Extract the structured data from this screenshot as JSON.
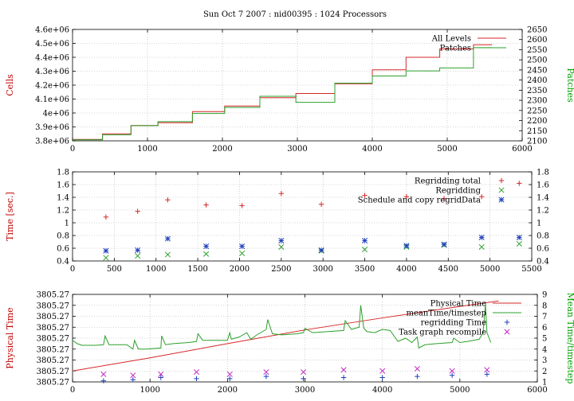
{
  "title": "Sun Oct 7 2007 : nid00395 : 1024 Processors",
  "colors": {
    "red": "#d62728",
    "green": "#2ca02c",
    "blue": "#1f3fbf",
    "magenta": "#c020c0"
  },
  "chart_data": [
    {
      "type": "line",
      "ylabel": "Cells",
      "y2label": "Patches",
      "xlim": [
        0,
        6000
      ],
      "ylim": [
        3800000,
        4600000
      ],
      "y2lim": [
        2100,
        2650
      ],
      "xticks": [
        0,
        1000,
        2000,
        3000,
        4000,
        5000,
        6000
      ],
      "yticks": [
        3800000,
        3900000,
        4000000,
        4100000,
        4200000,
        4300000,
        4400000,
        4500000,
        4600000
      ],
      "ytick_labels": [
        "3.8e+06",
        "3.9e+06",
        "4e+06",
        "4.1e+06",
        "4.2e+06",
        "4.3e+06",
        "4.4e+06",
        "4.5e+06",
        "4.6e+06"
      ],
      "y2ticks": [
        2100,
        2150,
        2200,
        2250,
        2300,
        2350,
        2400,
        2450,
        2500,
        2550,
        2600,
        2650
      ],
      "legend_position": "top-right",
      "series": [
        {
          "name": "All Levels",
          "axis": "y",
          "color": "#d62728",
          "step": true,
          "x": [
            0,
            400,
            780,
            1140,
            1600,
            2030,
            2500,
            2980,
            3500,
            4000,
            4450,
            4900,
            5350
          ],
          "y": [
            3810000,
            3850000,
            3910000,
            3930000,
            4010000,
            4050000,
            4110000,
            4140000,
            4210000,
            4310000,
            4400000,
            4460000,
            4490000
          ]
        },
        {
          "name": "Patches",
          "axis": "y2",
          "color": "#2ca02c",
          "step": true,
          "x": [
            0,
            400,
            780,
            1140,
            1600,
            2030,
            2500,
            2980,
            3500,
            4000,
            4450,
            4900,
            5350
          ],
          "y": [
            2105,
            2130,
            2175,
            2195,
            2235,
            2265,
            2320,
            2290,
            2385,
            2420,
            2445,
            2460,
            2560
          ]
        }
      ]
    },
    {
      "type": "scatter",
      "ylabel": "Time [sec.]",
      "xlim": [
        0,
        5500
      ],
      "ylim": [
        0.4,
        1.8
      ],
      "xticks": [
        0,
        500,
        1000,
        1500,
        2000,
        2500,
        3000,
        3500,
        4000,
        4500,
        5000,
        5500
      ],
      "yticks": [
        0.4,
        0.6,
        0.8,
        1,
        1.2,
        1.4,
        1.6,
        1.8
      ],
      "ytick_labels": [
        "0.4",
        "0.6",
        "0.8",
        "1",
        "1.2",
        "1.4",
        "1.6",
        "1.8"
      ],
      "legend_position": "top-right",
      "series": [
        {
          "name": "Regridding total",
          "marker": "plus",
          "color": "#d62728",
          "x": [
            400,
            780,
            1140,
            1600,
            2030,
            2500,
            2980,
            3500,
            4000,
            4450,
            4900,
            5350
          ],
          "y": [
            1.09,
            1.18,
            1.36,
            1.28,
            1.27,
            1.46,
            1.29,
            1.43,
            1.41,
            1.38,
            1.41,
            1.62
          ]
        },
        {
          "name": "Regridding",
          "marker": "cross",
          "color": "#2ca02c",
          "x": [
            400,
            780,
            1140,
            1600,
            2030,
            2500,
            2980,
            3500,
            4000,
            4450,
            4900,
            5350
          ],
          "y": [
            0.45,
            0.48,
            0.5,
            0.51,
            0.52,
            0.62,
            0.56,
            0.58,
            0.62,
            0.65,
            0.62,
            0.67
          ]
        },
        {
          "name": "Schedule and copy regridData",
          "marker": "star",
          "color": "#1f3fbf",
          "x": [
            400,
            780,
            1140,
            1600,
            2030,
            2500,
            2980,
            3500,
            4000,
            4450,
            4900,
            5350
          ],
          "y": [
            0.56,
            0.57,
            0.75,
            0.63,
            0.63,
            0.72,
            0.57,
            0.72,
            0.64,
            0.66,
            0.77,
            0.77
          ]
        }
      ]
    },
    {
      "type": "line",
      "ylabel": "Physical Time",
      "y2label": "Mean Time/timestep",
      "xlim": [
        0,
        6000
      ],
      "ylim": [
        0,
        8
      ],
      "y2lim": [
        1,
        9
      ],
      "xticks": [
        0,
        1000,
        2000,
        3000,
        4000,
        5000,
        6000
      ],
      "yticks": [
        0,
        1,
        2,
        3,
        4,
        5,
        6,
        7,
        8
      ],
      "ytick_labels": [
        "3805.27",
        "3805.27",
        "3805.27",
        "3805.27",
        "3805.27",
        "3805.27",
        "3805.27",
        "3805.27",
        "3805.27"
      ],
      "y2ticks": [
        1,
        2,
        3,
        4,
        5,
        6,
        7,
        8,
        9
      ],
      "legend_position": "top-right",
      "series": [
        {
          "name": "Physical Time",
          "kind": "line",
          "axis": "y",
          "color": "#d62728",
          "x": [
            0,
            1000,
            2000,
            3000,
            4000,
            5000,
            5500
          ],
          "y": [
            1.0,
            2.2,
            3.5,
            4.75,
            5.85,
            6.9,
            7.4
          ]
        },
        {
          "name": "meanTime/timestep",
          "kind": "line",
          "axis": "y2",
          "color": "#2ca02c",
          "x": [
            0,
            60,
            120,
            300,
            400,
            420,
            470,
            560,
            700,
            780,
            800,
            850,
            950,
            1140,
            1150,
            1200,
            1300,
            1500,
            1600,
            1620,
            1680,
            1800,
            2000,
            2030,
            2050,
            2150,
            2250,
            2300,
            2380,
            2500,
            2520,
            2580,
            2700,
            2900,
            2980,
            3000,
            3100,
            3300,
            3500,
            3520,
            3600,
            3700,
            3720,
            3760,
            3800,
            3900,
            4000,
            4100,
            4200,
            4300,
            4380,
            4450,
            4470,
            4550,
            4700,
            4900,
            4920,
            5000,
            5100,
            5250,
            5300,
            5330,
            5350,
            5400
          ],
          "y": [
            4.8,
            4.5,
            4.35,
            4.35,
            4.4,
            5.2,
            4.4,
            4.4,
            4.4,
            4.0,
            4.8,
            4.0,
            4.0,
            4.1,
            5.2,
            4.4,
            4.5,
            4.6,
            4.7,
            5.4,
            4.8,
            4.8,
            4.8,
            5.5,
            4.9,
            5.1,
            5.5,
            4.9,
            5.3,
            5.8,
            6.7,
            5.4,
            5.3,
            5.4,
            5.5,
            5.9,
            5.5,
            5.6,
            5.7,
            6.6,
            5.8,
            6.0,
            8.0,
            5.9,
            5.6,
            5.5,
            5.8,
            5.7,
            4.7,
            5.0,
            4.6,
            5.1,
            4.1,
            4.4,
            4.5,
            4.6,
            5.0,
            4.6,
            4.7,
            4.9,
            5.5,
            8.1,
            5.5,
            4.6
          ]
        },
        {
          "name": "regridding Time",
          "kind": "points",
          "marker": "plus",
          "axis": "y",
          "color": "#1f3fbf",
          "x": [
            400,
            780,
            1140,
            1600,
            2030,
            2500,
            2980,
            3500,
            4000,
            4450,
            4900,
            5350
          ],
          "y": [
            0.1,
            0.2,
            0.4,
            0.3,
            0.3,
            0.5,
            0.3,
            0.4,
            0.4,
            0.5,
            0.6,
            0.7
          ]
        },
        {
          "name": "Task graph recompile",
          "kind": "points",
          "marker": "cross",
          "axis": "y",
          "color": "#c020c0",
          "x": [
            400,
            780,
            1140,
            1600,
            2030,
            2500,
            2980,
            3500,
            4000,
            4450,
            4900,
            5350
          ],
          "y": [
            0.7,
            0.6,
            0.7,
            0.9,
            0.7,
            0.9,
            0.9,
            1.1,
            1.0,
            1.2,
            1.0,
            1.1
          ]
        }
      ]
    }
  ]
}
